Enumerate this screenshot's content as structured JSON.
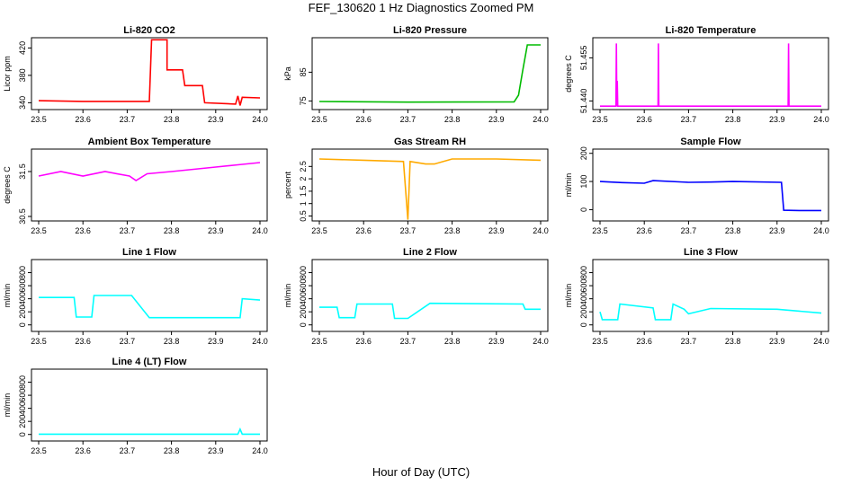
{
  "title": "FEF_130620  1 Hz Diagnostics Zoomed PM",
  "xlabel": "Hour of Day (UTC)",
  "chart_data": [
    {
      "type": "line",
      "title": "Li-820 CO2",
      "ylabel": "Licor ppm",
      "color": "#ff0000",
      "xlim": [
        23.5,
        24.0
      ],
      "ylim": [
        330,
        435
      ],
      "xticks": [
        "23.5",
        "23.6",
        "23.7",
        "23.8",
        "23.9",
        "24.0"
      ],
      "yticks": [
        340,
        380,
        420
      ],
      "series": [
        {
          "points": [
            [
              23.5,
              343
            ],
            [
              23.6,
              342
            ],
            [
              23.75,
              342
            ],
            [
              23.755,
              432
            ],
            [
              23.79,
              432
            ],
            [
              23.79,
              388
            ],
            [
              23.825,
              388
            ],
            [
              23.83,
              365
            ],
            [
              23.87,
              365
            ],
            [
              23.875,
              340
            ],
            [
              23.945,
              338
            ],
            [
              23.95,
              350
            ],
            [
              23.955,
              336
            ],
            [
              23.96,
              348
            ],
            [
              24.0,
              347
            ]
          ]
        }
      ]
    },
    {
      "type": "line",
      "title": "Li-820 Pressure",
      "ylabel": "kPa",
      "color": "#00bb00",
      "xlim": [
        23.5,
        24.0
      ],
      "ylim": [
        72,
        97
      ],
      "xticks": [
        "23.5",
        "23.6",
        "23.7",
        "23.8",
        "23.9",
        "24.0"
      ],
      "yticks": [
        75,
        85
      ],
      "series": [
        {
          "points": [
            [
              23.5,
              74.8
            ],
            [
              23.7,
              74.6
            ],
            [
              23.94,
              74.7
            ],
            [
              23.95,
              77
            ],
            [
              23.96,
              86
            ],
            [
              23.97,
              94.5
            ],
            [
              24.0,
              94.5
            ]
          ]
        }
      ]
    },
    {
      "type": "line",
      "title": "Li-820 Temperature",
      "ylabel": "degrees C",
      "color": "#ff00ff",
      "xlim": [
        23.5,
        24.0
      ],
      "ylim": [
        51.437,
        51.462
      ],
      "xticks": [
        "23.5",
        "23.6",
        "23.7",
        "23.8",
        "23.9",
        "24.0"
      ],
      "yticks": [
        51.44,
        51.455
      ],
      "ytick_labels": [
        "51.440",
        "51.455"
      ],
      "series": [
        {
          "points": [
            [
              23.5,
              51.4382
            ],
            [
              23.536,
              51.4382
            ],
            [
              23.537,
              51.46
            ],
            [
              23.538,
              51.4382
            ],
            [
              23.539,
              51.447
            ],
            [
              23.54,
              51.4382
            ],
            [
              23.631,
              51.4382
            ],
            [
              23.632,
              51.46
            ],
            [
              23.633,
              51.4382
            ],
            [
              23.925,
              51.4382
            ],
            [
              23.926,
              51.46
            ],
            [
              23.927,
              51.4382
            ],
            [
              24.0,
              51.4382
            ]
          ]
        }
      ]
    },
    {
      "type": "line",
      "title": "Ambient Box Temperature",
      "ylabel": "degrees C",
      "color": "#ff00ff",
      "xlim": [
        23.5,
        24.0
      ],
      "ylim": [
        30.4,
        32.0
      ],
      "xticks": [
        "23.5",
        "23.6",
        "23.7",
        "23.8",
        "23.9",
        "24.0"
      ],
      "yticks": [
        30.5,
        31.5
      ],
      "series": [
        {
          "points": [
            [
              23.5,
              31.4
            ],
            [
              23.55,
              31.5
            ],
            [
              23.6,
              31.4
            ],
            [
              23.65,
              31.5
            ],
            [
              23.705,
              31.4
            ],
            [
              23.72,
              31.3
            ],
            [
              23.745,
              31.45
            ],
            [
              23.8,
              31.5
            ],
            [
              23.85,
              31.55
            ],
            [
              23.9,
              31.6
            ],
            [
              23.95,
              31.65
            ],
            [
              24.0,
              31.7
            ]
          ]
        }
      ]
    },
    {
      "type": "line",
      "title": "Gas Stream RH",
      "ylabel": "percent",
      "color": "#ffaa00",
      "xlim": [
        23.5,
        24.0
      ],
      "ylim": [
        0.3,
        3.2
      ],
      "xticks": [
        "23.5",
        "23.6",
        "23.7",
        "23.8",
        "23.9",
        "24.0"
      ],
      "yticks": [
        0.5,
        1.0,
        1.5,
        2.0,
        2.5
      ],
      "ytick_labels": [
        "0.5",
        "1",
        "1.5",
        "2",
        "2.5"
      ],
      "series": [
        {
          "points": [
            [
              23.5,
              2.8
            ],
            [
              23.6,
              2.75
            ],
            [
              23.69,
              2.7
            ],
            [
              23.7,
              0.35
            ],
            [
              23.705,
              2.7
            ],
            [
              23.74,
              2.6
            ],
            [
              23.76,
              2.6
            ],
            [
              23.8,
              2.8
            ],
            [
              23.9,
              2.8
            ],
            [
              24.0,
              2.75
            ]
          ]
        }
      ]
    },
    {
      "type": "line",
      "title": "Sample Flow",
      "ylabel": "ml/min",
      "color": "#0000ff",
      "xlim": [
        23.5,
        24.0
      ],
      "ylim": [
        -40,
        215
      ],
      "xticks": [
        "23.5",
        "23.6",
        "23.7",
        "23.8",
        "23.9",
        "24.0"
      ],
      "yticks": [
        0,
        100,
        200
      ],
      "series": [
        {
          "points": [
            [
              23.5,
              100
            ],
            [
              23.55,
              96
            ],
            [
              23.6,
              94
            ],
            [
              23.62,
              103
            ],
            [
              23.7,
              97
            ],
            [
              23.75,
              98
            ],
            [
              23.8,
              100
            ],
            [
              23.91,
              97
            ],
            [
              23.915,
              -2
            ],
            [
              23.95,
              -3
            ],
            [
              24.0,
              -3
            ]
          ]
        }
      ]
    },
    {
      "type": "line",
      "title": "Line 1 Flow",
      "ylabel": "ml/min",
      "color": "#00ffff",
      "xlim": [
        23.5,
        24.0
      ],
      "ylim": [
        -100,
        1000
      ],
      "xticks": [
        "23.5",
        "23.6",
        "23.7",
        "23.8",
        "23.9",
        "24.0"
      ],
      "yticks": [
        0,
        200,
        400,
        600,
        800
      ],
      "series": [
        {
          "points": [
            [
              23.5,
              420
            ],
            [
              23.58,
              420
            ],
            [
              23.585,
              120
            ],
            [
              23.62,
              120
            ],
            [
              23.625,
              450
            ],
            [
              23.71,
              450
            ],
            [
              23.75,
              110
            ],
            [
              23.955,
              110
            ],
            [
              23.96,
              400
            ],
            [
              24.0,
              380
            ]
          ]
        }
      ]
    },
    {
      "type": "line",
      "title": "Line 2 Flow",
      "ylabel": "ml/min",
      "color": "#00ffff",
      "xlim": [
        23.5,
        24.0
      ],
      "ylim": [
        -100,
        1000
      ],
      "xticks": [
        "23.5",
        "23.6",
        "23.7",
        "23.8",
        "23.9",
        "24.0"
      ],
      "yticks": [
        0,
        200,
        400,
        600,
        800
      ],
      "series": [
        {
          "points": [
            [
              23.5,
              270
            ],
            [
              23.54,
              270
            ],
            [
              23.545,
              110
            ],
            [
              23.58,
              110
            ],
            [
              23.585,
              320
            ],
            [
              23.665,
              320
            ],
            [
              23.67,
              100
            ],
            [
              23.7,
              100
            ],
            [
              23.75,
              330
            ],
            [
              23.96,
              320
            ],
            [
              23.965,
              240
            ],
            [
              24.0,
              240
            ]
          ]
        }
      ]
    },
    {
      "type": "line",
      "title": "Line 3 Flow",
      "ylabel": "ml/min",
      "color": "#00ffff",
      "xlim": [
        23.5,
        24.0
      ],
      "ylim": [
        -100,
        1000
      ],
      "xticks": [
        "23.5",
        "23.6",
        "23.7",
        "23.8",
        "23.9",
        "24.0"
      ],
      "yticks": [
        0,
        200,
        400,
        600,
        800
      ],
      "series": [
        {
          "points": [
            [
              23.5,
              200
            ],
            [
              23.505,
              80
            ],
            [
              23.54,
              80
            ],
            [
              23.545,
              320
            ],
            [
              23.62,
              260
            ],
            [
              23.625,
              80
            ],
            [
              23.66,
              80
            ],
            [
              23.665,
              320
            ],
            [
              23.69,
              240
            ],
            [
              23.7,
              170
            ],
            [
              23.75,
              250
            ],
            [
              23.9,
              240
            ],
            [
              24.0,
              180
            ]
          ]
        }
      ]
    },
    {
      "type": "line",
      "title": "Line 4 (LT) Flow",
      "ylabel": "ml/min",
      "color": "#00ffff",
      "xlim": [
        23.5,
        24.0
      ],
      "ylim": [
        -100,
        1000
      ],
      "xticks": [
        "23.5",
        "23.6",
        "23.7",
        "23.8",
        "23.9",
        "24.0"
      ],
      "yticks": [
        0,
        200,
        400,
        600,
        800
      ],
      "series": [
        {
          "points": [
            [
              23.5,
              5
            ],
            [
              23.95,
              5
            ],
            [
              23.955,
              80
            ],
            [
              23.96,
              5
            ],
            [
              24.0,
              5
            ]
          ]
        }
      ]
    }
  ]
}
